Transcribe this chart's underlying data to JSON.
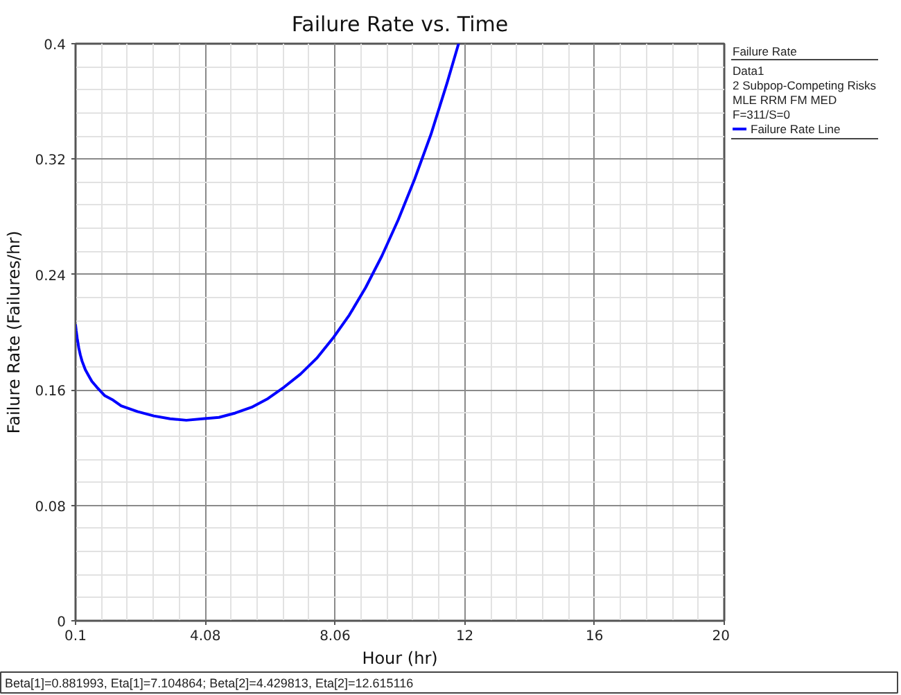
{
  "chart_data": {
    "type": "line",
    "title": "Failure Rate vs. Time",
    "xlabel": "Hour (hr)",
    "ylabel": "Failure Rate (Failures/hr)",
    "legend_title": "Failure Rate",
    "annotations": [
      "Data1",
      "2 Subpop-Competing Risks",
      "MLE RRM FM MED",
      "F=311/S=0",
      "Beta[1]=0.881993, Eta[1]=7.104864; Beta[2]=4.429813, Eta[2]=12.615116"
    ],
    "x": [
      0.1,
      0.12,
      0.15,
      0.2,
      0.25,
      0.3,
      0.4,
      0.5,
      0.6,
      0.75,
      1,
      1.25,
      1.5,
      2,
      2.5,
      3,
      3.5,
      4,
      4.5,
      5,
      5.5,
      6,
      6.5,
      7,
      7.5,
      8,
      8.5,
      9,
      9.5,
      10,
      10.5,
      11,
      11.5,
      11.85
    ],
    "series": [
      {
        "name": "Failure Rate Line",
        "color": "#0000ff",
        "values": [
          0.205,
          0.201,
          0.196,
          0.189,
          0.184,
          0.18,
          0.174,
          0.17,
          0.166,
          0.162,
          0.156,
          0.153,
          0.149,
          0.145,
          0.142,
          0.14,
          0.139,
          0.14,
          0.141,
          0.144,
          0.148,
          0.154,
          0.162,
          0.171,
          0.182,
          0.196,
          0.212,
          0.231,
          0.253,
          0.278,
          0.306,
          0.337,
          0.373,
          0.4
        ]
      }
    ],
    "xlim": [
      0.1,
      20
    ],
    "ylim": [
      0,
      0.4
    ],
    "xticks": [
      0.1,
      4.08,
      8.06,
      {
        "value": 12.04,
        "label": "12"
      },
      {
        "value": 16.02,
        "label": "16"
      },
      20
    ],
    "yticks": [
      0,
      0.08,
      0.16,
      0.24,
      0.32,
      0.4
    ],
    "grid": true,
    "legend": "right"
  }
}
